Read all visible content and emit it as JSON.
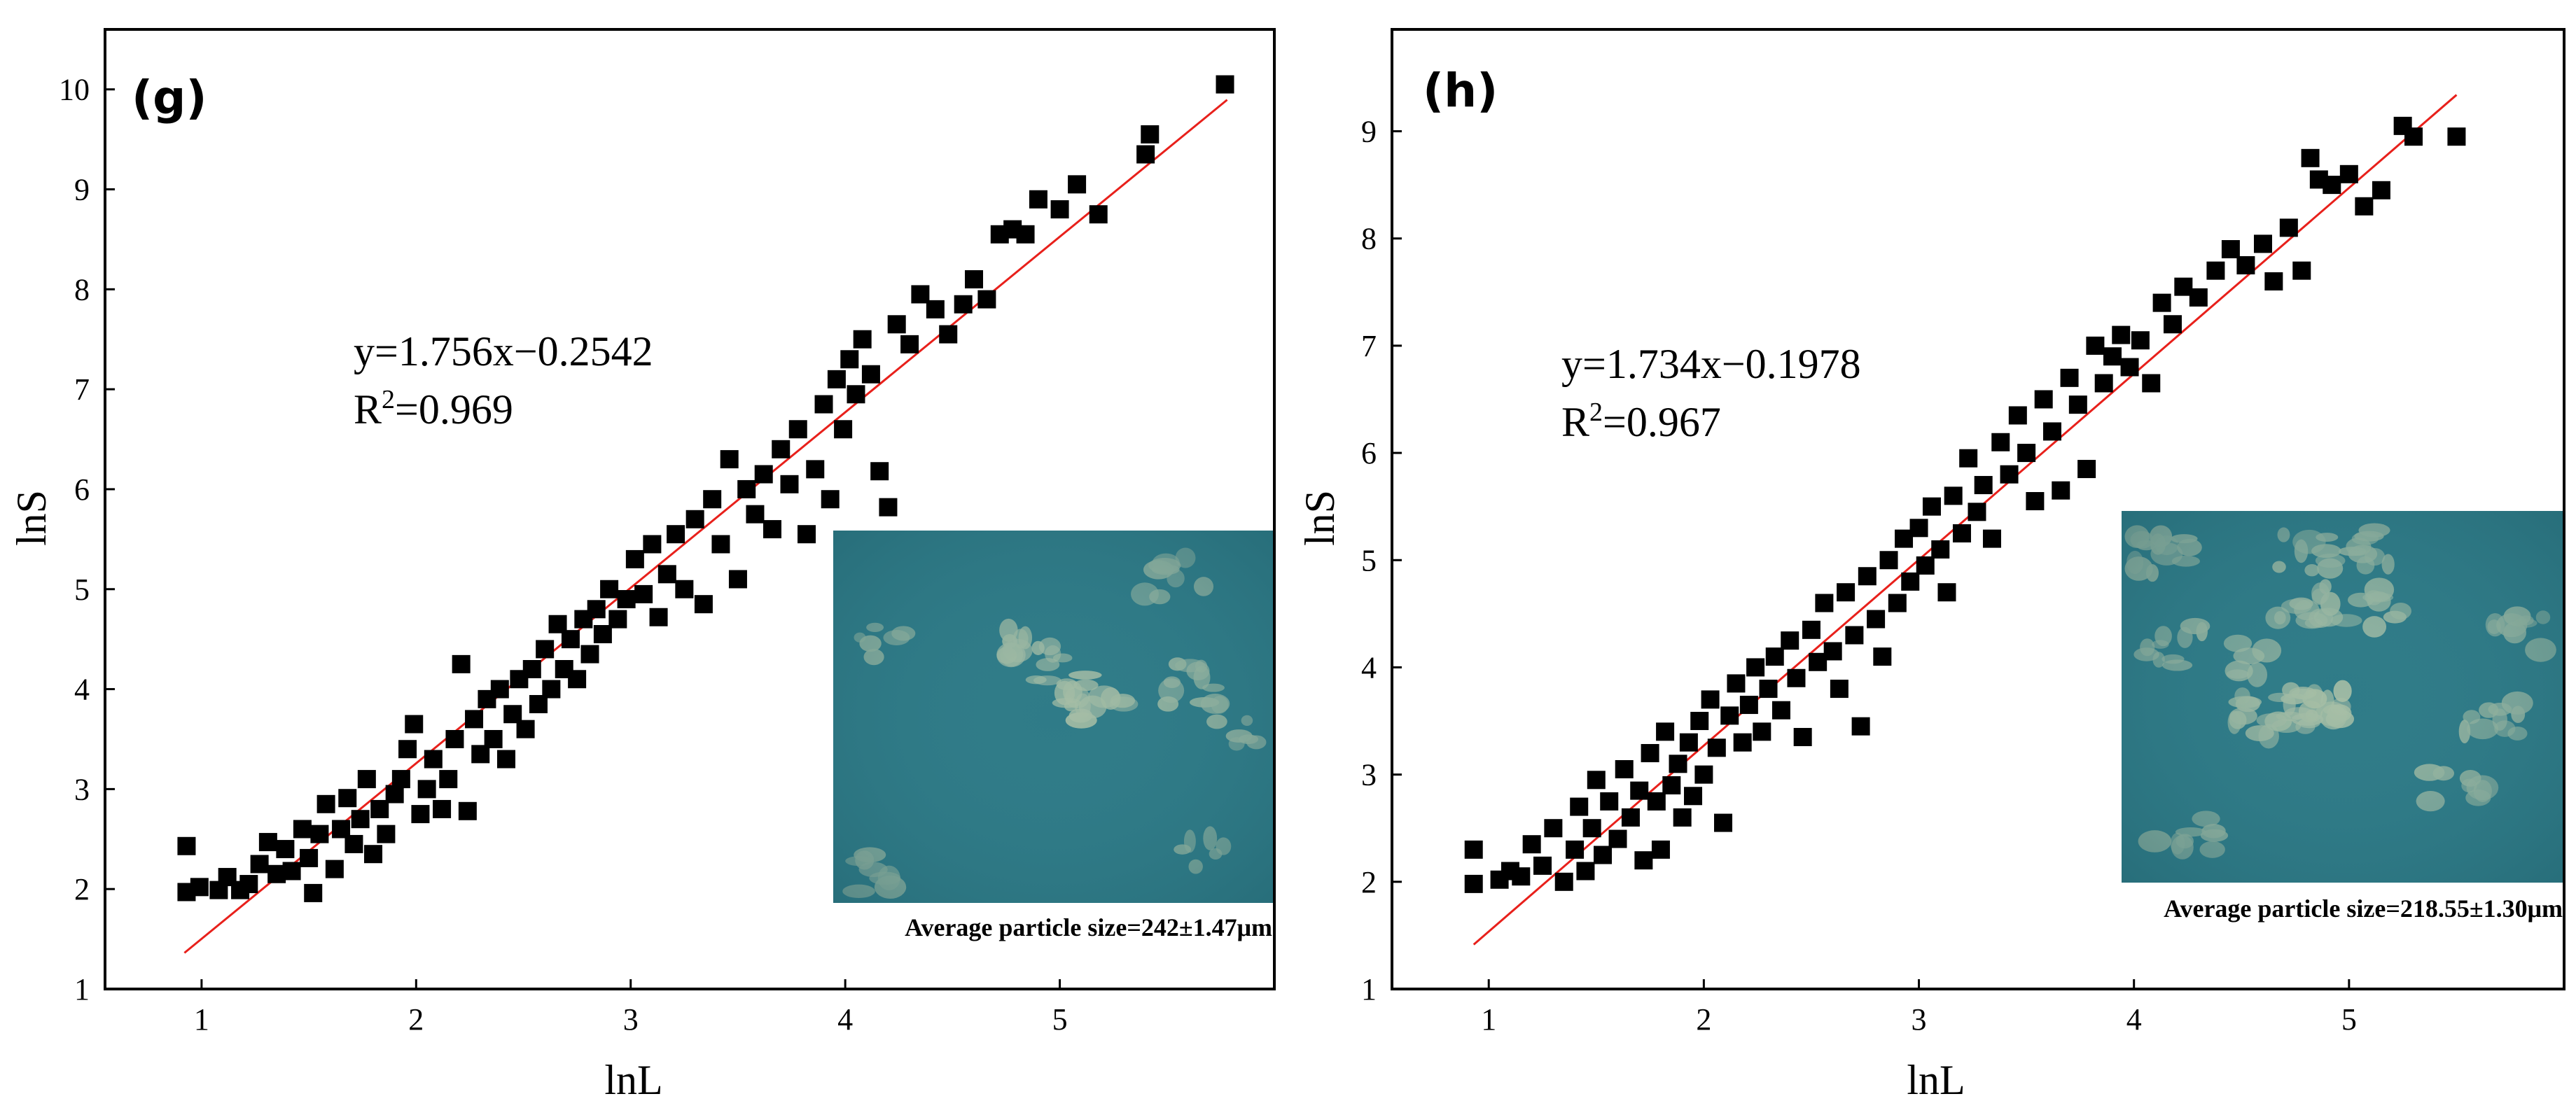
{
  "colors": {
    "marker": "#000000",
    "fit_line": "#e8201b",
    "inset_base": "#2f7b88",
    "particle": "#a9bfa6"
  },
  "chart_data": [
    {
      "panel_label": "(g)",
      "type": "scatter",
      "xlabel": "lnL",
      "ylabel": "lnS",
      "xlim": [
        0.55,
        6.0
      ],
      "ylim": [
        1,
        10.6
      ],
      "x_ticks": [
        1,
        2,
        3,
        4,
        5
      ],
      "y_ticks": [
        1,
        2,
        3,
        4,
        5,
        6,
        7,
        8,
        9,
        10
      ],
      "fit": {
        "slope": 1.756,
        "intercept": -0.2542,
        "x_range": [
          0.92,
          5.78
        ]
      },
      "equation": "y=1.756x−0.2542",
      "r2_base": "R",
      "r2_sup": "2",
      "r2_value": "=0.969",
      "inset_caption": "Average particle size=242±1.47μm",
      "points": [
        [
          0.93,
          1.97
        ],
        [
          0.93,
          2.43
        ],
        [
          0.99,
          2.02
        ],
        [
          1.08,
          1.99
        ],
        [
          1.12,
          2.12
        ],
        [
          1.18,
          1.99
        ],
        [
          1.22,
          2.05
        ],
        [
          1.27,
          2.25
        ],
        [
          1.31,
          2.47
        ],
        [
          1.35,
          2.15
        ],
        [
          1.39,
          2.4
        ],
        [
          1.42,
          2.18
        ],
        [
          1.47,
          2.6
        ],
        [
          1.5,
          2.31
        ],
        [
          1.52,
          1.96
        ],
        [
          1.55,
          2.55
        ],
        [
          1.58,
          2.85
        ],
        [
          1.62,
          2.2
        ],
        [
          1.65,
          2.6
        ],
        [
          1.68,
          2.91
        ],
        [
          1.71,
          2.45
        ],
        [
          1.74,
          2.7
        ],
        [
          1.77,
          3.1
        ],
        [
          1.8,
          2.35
        ],
        [
          1.83,
          2.8
        ],
        [
          1.86,
          2.55
        ],
        [
          1.9,
          2.95
        ],
        [
          1.93,
          3.1
        ],
        [
          1.96,
          3.4
        ],
        [
          1.99,
          3.65
        ],
        [
          2.02,
          2.75
        ],
        [
          2.05,
          3.0
        ],
        [
          2.08,
          3.3
        ],
        [
          2.12,
          2.8
        ],
        [
          2.15,
          3.1
        ],
        [
          2.18,
          3.5
        ],
        [
          2.21,
          4.25
        ],
        [
          2.24,
          2.78
        ],
        [
          2.27,
          3.7
        ],
        [
          2.3,
          3.35
        ],
        [
          2.33,
          3.9
        ],
        [
          2.36,
          3.5
        ],
        [
          2.39,
          4.0
        ],
        [
          2.42,
          3.3
        ],
        [
          2.45,
          3.75
        ],
        [
          2.48,
          4.1
        ],
        [
          2.51,
          3.6
        ],
        [
          2.54,
          4.2
        ],
        [
          2.57,
          3.85
        ],
        [
          2.6,
          4.4
        ],
        [
          2.63,
          4.0
        ],
        [
          2.66,
          4.65
        ],
        [
          2.69,
          4.2
        ],
        [
          2.72,
          4.5
        ],
        [
          2.75,
          4.1
        ],
        [
          2.78,
          4.7
        ],
        [
          2.81,
          4.35
        ],
        [
          2.84,
          4.8
        ],
        [
          2.87,
          4.55
        ],
        [
          2.9,
          5.0
        ],
        [
          2.94,
          4.7
        ],
        [
          2.98,
          4.9
        ],
        [
          3.02,
          5.3
        ],
        [
          3.06,
          4.95
        ],
        [
          3.1,
          5.45
        ],
        [
          3.13,
          4.72
        ],
        [
          3.17,
          5.15
        ],
        [
          3.21,
          5.55
        ],
        [
          3.25,
          5.0
        ],
        [
          3.3,
          5.7
        ],
        [
          3.34,
          4.85
        ],
        [
          3.38,
          5.9
        ],
        [
          3.42,
          5.45
        ],
        [
          3.46,
          6.3
        ],
        [
          3.5,
          5.1
        ],
        [
          3.54,
          6.0
        ],
        [
          3.58,
          5.75
        ],
        [
          3.62,
          6.15
        ],
        [
          3.66,
          5.6
        ],
        [
          3.7,
          6.4
        ],
        [
          3.74,
          6.05
        ],
        [
          3.78,
          6.6
        ],
        [
          3.82,
          5.55
        ],
        [
          3.86,
          6.2
        ],
        [
          3.9,
          6.85
        ],
        [
          3.93,
          5.9
        ],
        [
          3.96,
          7.1
        ],
        [
          3.99,
          6.6
        ],
        [
          4.02,
          7.3
        ],
        [
          4.05,
          6.95
        ],
        [
          4.08,
          7.5
        ],
        [
          4.12,
          7.15
        ],
        [
          4.16,
          6.18
        ],
        [
          4.2,
          5.82
        ],
        [
          4.24,
          7.65
        ],
        [
          4.3,
          7.45
        ],
        [
          4.35,
          7.95
        ],
        [
          4.42,
          7.8
        ],
        [
          4.48,
          7.55
        ],
        [
          4.55,
          7.85
        ],
        [
          4.6,
          8.1
        ],
        [
          4.66,
          7.9
        ],
        [
          4.72,
          8.55
        ],
        [
          4.78,
          8.6
        ],
        [
          4.84,
          8.55
        ],
        [
          4.9,
          8.9
        ],
        [
          5.0,
          8.8
        ],
        [
          5.08,
          9.05
        ],
        [
          5.18,
          8.75
        ],
        [
          5.4,
          9.35
        ],
        [
          5.42,
          9.55
        ],
        [
          5.77,
          10.05
        ]
      ]
    },
    {
      "panel_label": "(h)",
      "type": "scatter",
      "xlabel": "lnL",
      "ylabel": "lnS",
      "xlim": [
        0.55,
        6.0
      ],
      "ylim": [
        1,
        9.95
      ],
      "x_ticks": [
        1,
        2,
        3,
        4,
        5
      ],
      "y_ticks": [
        1,
        2,
        3,
        4,
        5,
        6,
        7,
        8,
        9
      ],
      "fit": {
        "slope": 1.734,
        "intercept": -0.1978,
        "x_range": [
          0.93,
          5.5
        ]
      },
      "equation": "y=1.734x−0.1978",
      "r2_base": "R",
      "r2_sup": "2",
      "r2_value": "=0.967",
      "inset_caption": "Average particle size=218.55±1.30μm",
      "points": [
        [
          0.93,
          1.98
        ],
        [
          0.93,
          2.3
        ],
        [
          1.05,
          2.02
        ],
        [
          1.1,
          2.1
        ],
        [
          1.15,
          2.05
        ],
        [
          1.2,
          2.35
        ],
        [
          1.25,
          2.15
        ],
        [
          1.3,
          2.5
        ],
        [
          1.35,
          2.0
        ],
        [
          1.4,
          2.3
        ],
        [
          1.42,
          2.7
        ],
        [
          1.45,
          2.1
        ],
        [
          1.48,
          2.5
        ],
        [
          1.5,
          2.95
        ],
        [
          1.53,
          2.25
        ],
        [
          1.56,
          2.75
        ],
        [
          1.6,
          2.4
        ],
        [
          1.63,
          3.05
        ],
        [
          1.66,
          2.6
        ],
        [
          1.7,
          2.85
        ],
        [
          1.72,
          2.2
        ],
        [
          1.75,
          3.2
        ],
        [
          1.78,
          2.75
        ],
        [
          1.8,
          2.3
        ],
        [
          1.82,
          3.4
        ],
        [
          1.85,
          2.9
        ],
        [
          1.88,
          3.1
        ],
        [
          1.9,
          2.6
        ],
        [
          1.93,
          3.3
        ],
        [
          1.95,
          2.8
        ],
        [
          1.98,
          3.5
        ],
        [
          2.0,
          3.0
        ],
        [
          2.03,
          3.7
        ],
        [
          2.06,
          3.25
        ],
        [
          2.09,
          2.55
        ],
        [
          2.12,
          3.55
        ],
        [
          2.15,
          3.85
        ],
        [
          2.18,
          3.3
        ],
        [
          2.21,
          3.65
        ],
        [
          2.24,
          4.0
        ],
        [
          2.27,
          3.4
        ],
        [
          2.3,
          3.8
        ],
        [
          2.33,
          4.1
        ],
        [
          2.36,
          3.6
        ],
        [
          2.4,
          4.25
        ],
        [
          2.43,
          3.9
        ],
        [
          2.46,
          3.35
        ],
        [
          2.5,
          4.35
        ],
        [
          2.53,
          4.05
        ],
        [
          2.56,
          4.6
        ],
        [
          2.6,
          4.15
        ],
        [
          2.63,
          3.8
        ],
        [
          2.66,
          4.7
        ],
        [
          2.7,
          4.3
        ],
        [
          2.73,
          3.45
        ],
        [
          2.76,
          4.85
        ],
        [
          2.8,
          4.45
        ],
        [
          2.83,
          4.1
        ],
        [
          2.86,
          5.0
        ],
        [
          2.9,
          4.6
        ],
        [
          2.93,
          5.2
        ],
        [
          2.96,
          4.8
        ],
        [
          3.0,
          5.3
        ],
        [
          3.03,
          4.95
        ],
        [
          3.06,
          5.5
        ],
        [
          3.1,
          5.1
        ],
        [
          3.13,
          4.7
        ],
        [
          3.16,
          5.6
        ],
        [
          3.2,
          5.25
        ],
        [
          3.23,
          5.95
        ],
        [
          3.27,
          5.45
        ],
        [
          3.3,
          5.7
        ],
        [
          3.34,
          5.2
        ],
        [
          3.38,
          6.1
        ],
        [
          3.42,
          5.8
        ],
        [
          3.46,
          6.35
        ],
        [
          3.5,
          6.0
        ],
        [
          3.54,
          5.55
        ],
        [
          3.58,
          6.5
        ],
        [
          3.62,
          6.2
        ],
        [
          3.66,
          5.65
        ],
        [
          3.7,
          6.7
        ],
        [
          3.74,
          6.45
        ],
        [
          3.78,
          5.85
        ],
        [
          3.82,
          7.0
        ],
        [
          3.86,
          6.65
        ],
        [
          3.9,
          6.9
        ],
        [
          3.94,
          7.1
        ],
        [
          3.98,
          6.8
        ],
        [
          4.03,
          7.05
        ],
        [
          4.08,
          6.65
        ],
        [
          4.13,
          7.4
        ],
        [
          4.18,
          7.2
        ],
        [
          4.23,
          7.55
        ],
        [
          4.3,
          7.45
        ],
        [
          4.38,
          7.7
        ],
        [
          4.45,
          7.9
        ],
        [
          4.52,
          7.75
        ],
        [
          4.6,
          7.95
        ],
        [
          4.65,
          7.6
        ],
        [
          4.72,
          8.1
        ],
        [
          4.78,
          7.7
        ],
        [
          4.82,
          8.75
        ],
        [
          4.86,
          8.55
        ],
        [
          4.92,
          8.5
        ],
        [
          5.0,
          8.6
        ],
        [
          5.07,
          8.3
        ],
        [
          5.15,
          8.45
        ],
        [
          5.25,
          9.05
        ],
        [
          5.3,
          8.95
        ],
        [
          5.5,
          8.95
        ]
      ]
    }
  ]
}
